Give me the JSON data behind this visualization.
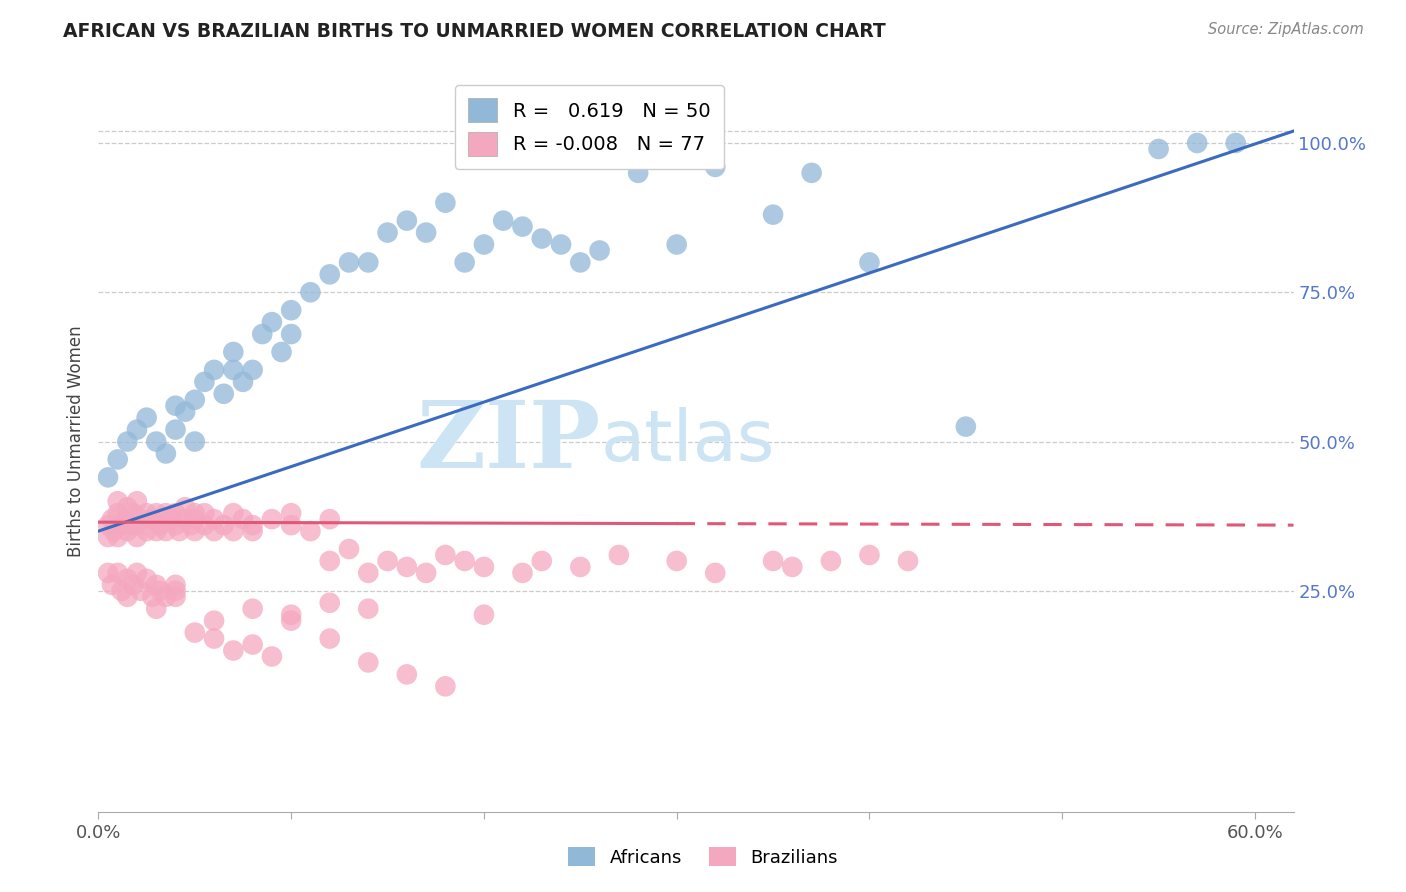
{
  "title": "AFRICAN VS BRAZILIAN BIRTHS TO UNMARRIED WOMEN CORRELATION CHART",
  "source": "Source: ZipAtlas.com",
  "ylabel": "Births to Unmarried Women",
  "xlim": [
    0.0,
    0.62
  ],
  "ylim": [
    -0.12,
    1.12
  ],
  "xtick_vals": [
    0.0,
    0.1,
    0.2,
    0.3,
    0.4,
    0.5,
    0.6
  ],
  "xticklabels": [
    "0.0%",
    "",
    "",
    "",
    "",
    "",
    "60.0%"
  ],
  "yticks_right": [
    0.25,
    0.5,
    0.75,
    1.0
  ],
  "ytick_right_labels": [
    "25.0%",
    "50.0%",
    "75.0%",
    "100.0%"
  ],
  "grid_color": "#cccccc",
  "background_color": "#ffffff",
  "watermark_color": "#cce4f4",
  "african_color": "#92b8d8",
  "african_edge": "#92b8d8",
  "brazilian_color": "#f4a8c0",
  "brazilian_edge": "#f4a8c0",
  "african_R": 0.619,
  "african_N": 50,
  "brazilian_R": -0.008,
  "brazilian_N": 77,
  "african_line_color": "#3a6bbf",
  "brazilian_line_color": "#e05878",
  "african_line_x0": 0.0,
  "african_line_y0": 0.35,
  "african_line_x1": 0.62,
  "african_line_y1": 1.02,
  "brazilian_line_x0": 0.0,
  "brazilian_line_y0": 0.365,
  "brazilian_line_x1": 0.62,
  "brazilian_line_y1": 0.36,
  "african_x": [
    0.005,
    0.01,
    0.015,
    0.02,
    0.025,
    0.03,
    0.035,
    0.04,
    0.04,
    0.045,
    0.05,
    0.05,
    0.055,
    0.06,
    0.065,
    0.07,
    0.07,
    0.075,
    0.08,
    0.085,
    0.09,
    0.095,
    0.1,
    0.1,
    0.11,
    0.12,
    0.13,
    0.14,
    0.15,
    0.16,
    0.17,
    0.18,
    0.19,
    0.2,
    0.21,
    0.22,
    0.23,
    0.24,
    0.25,
    0.26,
    0.28,
    0.3,
    0.32,
    0.35,
    0.37,
    0.4,
    0.45,
    0.55,
    0.57,
    0.59
  ],
  "african_y": [
    0.44,
    0.47,
    0.5,
    0.52,
    0.54,
    0.5,
    0.48,
    0.56,
    0.52,
    0.55,
    0.5,
    0.57,
    0.6,
    0.62,
    0.58,
    0.62,
    0.65,
    0.6,
    0.62,
    0.68,
    0.7,
    0.65,
    0.68,
    0.72,
    0.75,
    0.78,
    0.8,
    0.8,
    0.85,
    0.87,
    0.85,
    0.9,
    0.8,
    0.83,
    0.87,
    0.86,
    0.84,
    0.83,
    0.8,
    0.82,
    0.95,
    0.83,
    0.96,
    0.88,
    0.95,
    0.8,
    0.525,
    0.99,
    1.0,
    1.0
  ],
  "brazilian_x": [
    0.005,
    0.005,
    0.007,
    0.008,
    0.01,
    0.01,
    0.01,
    0.012,
    0.014,
    0.015,
    0.015,
    0.017,
    0.018,
    0.02,
    0.02,
    0.02,
    0.022,
    0.025,
    0.025,
    0.028,
    0.03,
    0.03,
    0.032,
    0.035,
    0.035,
    0.038,
    0.04,
    0.04,
    0.042,
    0.045,
    0.045,
    0.048,
    0.05,
    0.05,
    0.05,
    0.055,
    0.055,
    0.06,
    0.06,
    0.065,
    0.07,
    0.07,
    0.075,
    0.08,
    0.08,
    0.09,
    0.1,
    0.1,
    0.11,
    0.12,
    0.12,
    0.13,
    0.14,
    0.15,
    0.16,
    0.17,
    0.18,
    0.19,
    0.2,
    0.22,
    0.23,
    0.25,
    0.27,
    0.3,
    0.32,
    0.35,
    0.36,
    0.38,
    0.4,
    0.42,
    0.03,
    0.04,
    0.06,
    0.08,
    0.1,
    0.12,
    0.14
  ],
  "brazilian_y": [
    0.36,
    0.34,
    0.37,
    0.35,
    0.38,
    0.34,
    0.4,
    0.36,
    0.37,
    0.39,
    0.35,
    0.36,
    0.38,
    0.4,
    0.36,
    0.34,
    0.37,
    0.38,
    0.35,
    0.37,
    0.38,
    0.35,
    0.36,
    0.38,
    0.35,
    0.37,
    0.36,
    0.38,
    0.35,
    0.37,
    0.39,
    0.36,
    0.38,
    0.35,
    0.37,
    0.36,
    0.38,
    0.35,
    0.37,
    0.36,
    0.38,
    0.35,
    0.37,
    0.36,
    0.35,
    0.37,
    0.36,
    0.38,
    0.35,
    0.37,
    0.3,
    0.32,
    0.28,
    0.3,
    0.29,
    0.28,
    0.31,
    0.3,
    0.29,
    0.28,
    0.3,
    0.29,
    0.31,
    0.3,
    0.28,
    0.3,
    0.29,
    0.3,
    0.31,
    0.3,
    0.22,
    0.24,
    0.2,
    0.22,
    0.21,
    0.23,
    0.22
  ],
  "brazilian_below_x": [
    0.005,
    0.007,
    0.01,
    0.012,
    0.015,
    0.015,
    0.018,
    0.02,
    0.022,
    0.025,
    0.028,
    0.03,
    0.032,
    0.035,
    0.04,
    0.04,
    0.05,
    0.06,
    0.07,
    0.08,
    0.09,
    0.1,
    0.12,
    0.14,
    0.16,
    0.18,
    0.2
  ],
  "brazilian_below_y": [
    0.28,
    0.26,
    0.28,
    0.25,
    0.27,
    0.24,
    0.26,
    0.28,
    0.25,
    0.27,
    0.24,
    0.26,
    0.25,
    0.24,
    0.26,
    0.25,
    0.18,
    0.17,
    0.15,
    0.16,
    0.14,
    0.2,
    0.17,
    0.13,
    0.11,
    0.09,
    0.21
  ]
}
